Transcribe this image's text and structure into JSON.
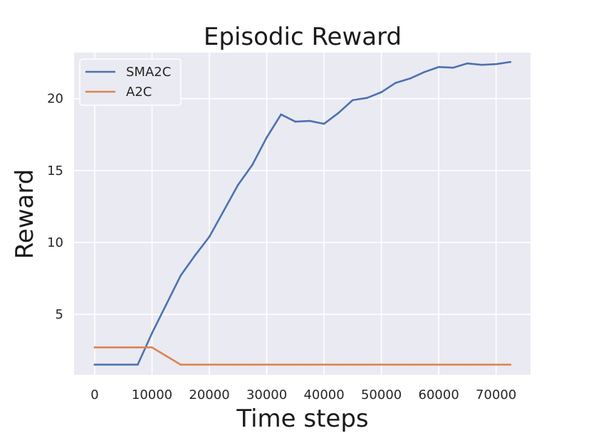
{
  "chart_data": {
    "type": "line",
    "title": "Episodic Reward",
    "xlabel": "Time steps",
    "ylabel": "Reward",
    "xlim": [
      -3600,
      76000
    ],
    "ylim": [
      0.8,
      23.2
    ],
    "xticks": [
      0,
      10000,
      20000,
      30000,
      40000,
      50000,
      60000,
      70000
    ],
    "yticks": [
      5,
      10,
      15,
      20
    ],
    "grid": true,
    "legend_position": "top-left",
    "colors": {
      "background": "#eaeaf2",
      "grid": "#ffffff"
    },
    "series": [
      {
        "name": "SMA2C",
        "color": "#4c72b0",
        "x": [
          0,
          2500,
          5000,
          7500,
          10000,
          12500,
          15000,
          17500,
          20000,
          22500,
          25000,
          27500,
          30000,
          32500,
          35000,
          37500,
          40000,
          42500,
          45000,
          47500,
          50000,
          52500,
          55000,
          57500,
          60000,
          62500,
          65000,
          67500,
          70000,
          72500
        ],
        "values": [
          1.5,
          1.5,
          1.5,
          1.5,
          3.7,
          5.7,
          7.7,
          9.1,
          10.4,
          12.2,
          14.0,
          15.4,
          17.3,
          18.9,
          18.4,
          18.45,
          18.25,
          19.0,
          19.9,
          20.05,
          20.45,
          21.1,
          21.4,
          21.85,
          22.2,
          22.15,
          22.45,
          22.35,
          22.4,
          22.55
        ]
      },
      {
        "name": "A2C",
        "color": "#dd8452",
        "x": [
          0,
          2500,
          5000,
          7500,
          10000,
          12500,
          15000,
          17500,
          20000,
          22500,
          25000,
          27500,
          30000,
          32500,
          35000,
          37500,
          40000,
          42500,
          45000,
          47500,
          50000,
          52500,
          55000,
          57500,
          60000,
          62500,
          65000,
          67500,
          70000,
          72500
        ],
        "values": [
          2.7,
          2.7,
          2.7,
          2.7,
          2.7,
          2.1,
          1.5,
          1.5,
          1.5,
          1.5,
          1.5,
          1.5,
          1.5,
          1.5,
          1.5,
          1.5,
          1.5,
          1.5,
          1.5,
          1.5,
          1.5,
          1.5,
          1.5,
          1.5,
          1.5,
          1.5,
          1.5,
          1.5,
          1.5,
          1.5
        ]
      }
    ]
  }
}
